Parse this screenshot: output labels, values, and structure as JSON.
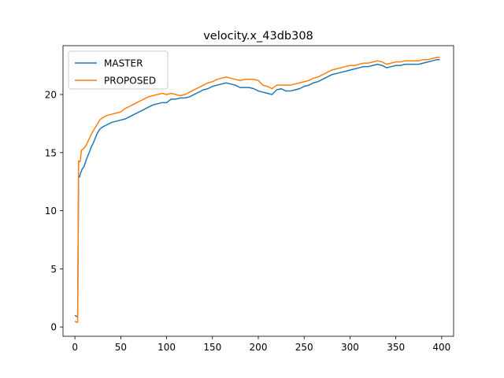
{
  "chart_data": {
    "type": "line",
    "title": "velocity.x_43db308",
    "xlabel": "",
    "ylabel": "",
    "xlim": [
      -13,
      413
    ],
    "ylim": [
      -0.8,
      24.2
    ],
    "xticks": [
      0,
      50,
      100,
      150,
      200,
      250,
      300,
      350,
      400
    ],
    "yticks": [
      0,
      5,
      10,
      15,
      20
    ],
    "grid": false,
    "legend_position": "top-left",
    "series": [
      {
        "name": "MASTER",
        "color": "#1f77b4",
        "points": [
          [
            0,
            1.0
          ],
          [
            2,
            0.9
          ],
          [
            3,
            0.9
          ],
          [
            4,
            13.0
          ],
          [
            5,
            12.9
          ],
          [
            6,
            13.2
          ],
          [
            8,
            13.6
          ],
          [
            10,
            13.8
          ],
          [
            12,
            14.3
          ],
          [
            15,
            14.9
          ],
          [
            18,
            15.5
          ],
          [
            21,
            16.0
          ],
          [
            24,
            16.6
          ],
          [
            27,
            17.0
          ],
          [
            30,
            17.2
          ],
          [
            35,
            17.4
          ],
          [
            40,
            17.6
          ],
          [
            45,
            17.7
          ],
          [
            50,
            17.8
          ],
          [
            55,
            17.9
          ],
          [
            60,
            18.1
          ],
          [
            65,
            18.3
          ],
          [
            70,
            18.5
          ],
          [
            75,
            18.7
          ],
          [
            80,
            18.9
          ],
          [
            85,
            19.1
          ],
          [
            90,
            19.2
          ],
          [
            95,
            19.3
          ],
          [
            100,
            19.3
          ],
          [
            105,
            19.6
          ],
          [
            110,
            19.6
          ],
          [
            115,
            19.7
          ],
          [
            120,
            19.7
          ],
          [
            125,
            19.8
          ],
          [
            130,
            20.0
          ],
          [
            135,
            20.2
          ],
          [
            140,
            20.4
          ],
          [
            145,
            20.5
          ],
          [
            150,
            20.7
          ],
          [
            155,
            20.8
          ],
          [
            160,
            20.9
          ],
          [
            165,
            21.0
          ],
          [
            170,
            20.9
          ],
          [
            175,
            20.8
          ],
          [
            180,
            20.6
          ],
          [
            185,
            20.6
          ],
          [
            190,
            20.6
          ],
          [
            195,
            20.5
          ],
          [
            200,
            20.3
          ],
          [
            205,
            20.2
          ],
          [
            210,
            20.1
          ],
          [
            215,
            20.0
          ],
          [
            220,
            20.4
          ],
          [
            225,
            20.5
          ],
          [
            230,
            20.3
          ],
          [
            235,
            20.3
          ],
          [
            240,
            20.4
          ],
          [
            245,
            20.5
          ],
          [
            250,
            20.7
          ],
          [
            255,
            20.8
          ],
          [
            260,
            21.0
          ],
          [
            265,
            21.1
          ],
          [
            270,
            21.3
          ],
          [
            275,
            21.5
          ],
          [
            280,
            21.7
          ],
          [
            285,
            21.8
          ],
          [
            290,
            21.9
          ],
          [
            295,
            22.0
          ],
          [
            300,
            22.1
          ],
          [
            305,
            22.2
          ],
          [
            310,
            22.3
          ],
          [
            315,
            22.4
          ],
          [
            320,
            22.4
          ],
          [
            325,
            22.5
          ],
          [
            330,
            22.6
          ],
          [
            335,
            22.5
          ],
          [
            340,
            22.3
          ],
          [
            345,
            22.4
          ],
          [
            350,
            22.5
          ],
          [
            355,
            22.5
          ],
          [
            360,
            22.6
          ],
          [
            365,
            22.6
          ],
          [
            370,
            22.6
          ],
          [
            375,
            22.6
          ],
          [
            380,
            22.7
          ],
          [
            385,
            22.8
          ],
          [
            390,
            22.9
          ],
          [
            395,
            23.0
          ],
          [
            398,
            23.0
          ]
        ]
      },
      {
        "name": "PROPOSED",
        "color": "#ff7f0e",
        "points": [
          [
            0,
            0.5
          ],
          [
            2,
            0.4
          ],
          [
            3,
            0.4
          ],
          [
            4,
            14.3
          ],
          [
            5,
            14.2
          ],
          [
            6,
            14.3
          ],
          [
            7,
            15.2
          ],
          [
            9,
            15.3
          ],
          [
            12,
            15.6
          ],
          [
            15,
            16.1
          ],
          [
            18,
            16.6
          ],
          [
            21,
            17.0
          ],
          [
            24,
            17.4
          ],
          [
            27,
            17.8
          ],
          [
            30,
            18.0
          ],
          [
            35,
            18.2
          ],
          [
            40,
            18.3
          ],
          [
            45,
            18.4
          ],
          [
            50,
            18.5
          ],
          [
            55,
            18.8
          ],
          [
            60,
            19.0
          ],
          [
            65,
            19.2
          ],
          [
            70,
            19.4
          ],
          [
            75,
            19.6
          ],
          [
            80,
            19.8
          ],
          [
            85,
            19.9
          ],
          [
            90,
            20.0
          ],
          [
            95,
            20.1
          ],
          [
            100,
            20.0
          ],
          [
            105,
            20.1
          ],
          [
            110,
            20.0
          ],
          [
            115,
            19.9
          ],
          [
            120,
            20.0
          ],
          [
            125,
            20.2
          ],
          [
            130,
            20.4
          ],
          [
            135,
            20.6
          ],
          [
            140,
            20.8
          ],
          [
            145,
            21.0
          ],
          [
            150,
            21.1
          ],
          [
            155,
            21.3
          ],
          [
            160,
            21.4
          ],
          [
            165,
            21.5
          ],
          [
            170,
            21.4
          ],
          [
            175,
            21.3
          ],
          [
            180,
            21.2
          ],
          [
            185,
            21.3
          ],
          [
            190,
            21.3
          ],
          [
            195,
            21.3
          ],
          [
            200,
            21.2
          ],
          [
            205,
            20.8
          ],
          [
            210,
            20.7
          ],
          [
            215,
            20.5
          ],
          [
            220,
            20.8
          ],
          [
            225,
            20.8
          ],
          [
            230,
            20.8
          ],
          [
            235,
            20.8
          ],
          [
            240,
            20.9
          ],
          [
            245,
            21.0
          ],
          [
            250,
            21.1
          ],
          [
            255,
            21.2
          ],
          [
            260,
            21.4
          ],
          [
            265,
            21.5
          ],
          [
            270,
            21.7
          ],
          [
            275,
            21.9
          ],
          [
            280,
            22.1
          ],
          [
            285,
            22.2
          ],
          [
            290,
            22.3
          ],
          [
            295,
            22.4
          ],
          [
            300,
            22.5
          ],
          [
            305,
            22.5
          ],
          [
            310,
            22.6
          ],
          [
            315,
            22.7
          ],
          [
            320,
            22.7
          ],
          [
            325,
            22.8
          ],
          [
            330,
            22.9
          ],
          [
            335,
            22.8
          ],
          [
            340,
            22.6
          ],
          [
            345,
            22.7
          ],
          [
            350,
            22.8
          ],
          [
            355,
            22.8
          ],
          [
            360,
            22.9
          ],
          [
            365,
            22.9
          ],
          [
            370,
            22.9
          ],
          [
            375,
            22.9
          ],
          [
            380,
            23.0
          ],
          [
            385,
            23.0
          ],
          [
            390,
            23.1
          ],
          [
            395,
            23.2
          ],
          [
            398,
            23.2
          ]
        ]
      }
    ]
  }
}
